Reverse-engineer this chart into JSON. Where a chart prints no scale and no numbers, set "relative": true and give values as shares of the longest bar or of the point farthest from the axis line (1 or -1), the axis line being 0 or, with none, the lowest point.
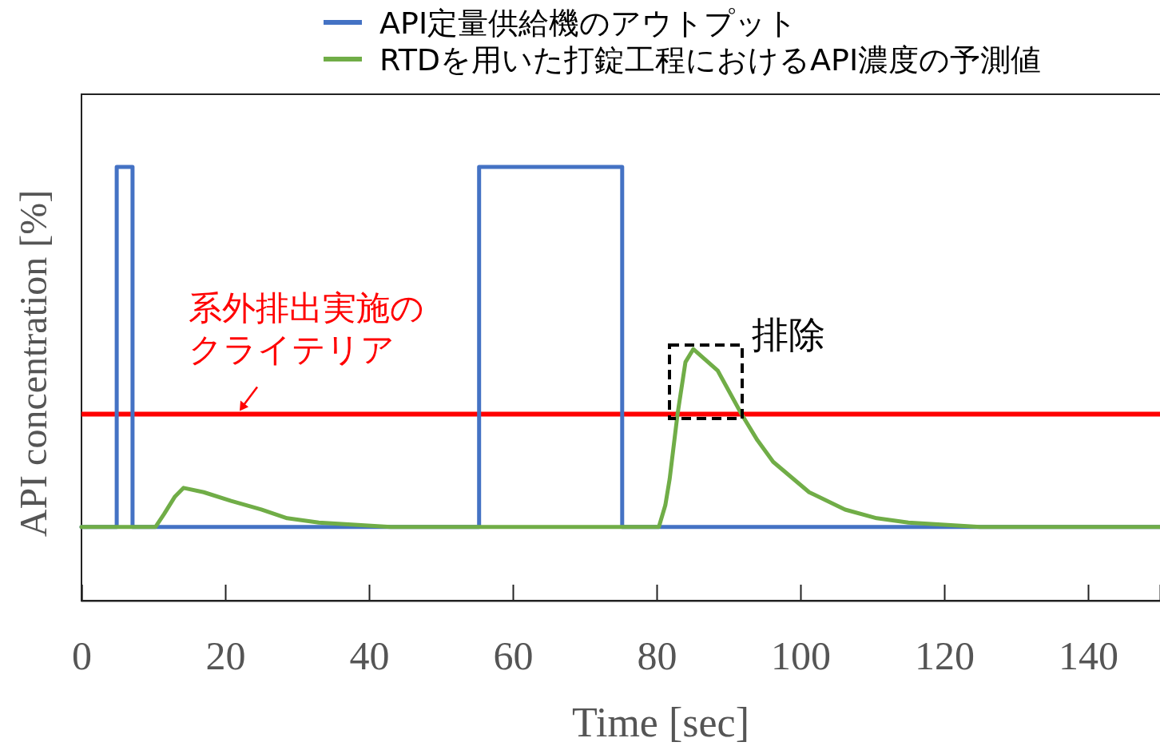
{
  "chart_data": {
    "type": "line",
    "relative": true,
    "xlabel": "Time [sec]",
    "ylabel": "API concentration [%]",
    "xlim": [
      0,
      150
    ],
    "xticks": [
      0,
      20,
      40,
      60,
      80,
      100,
      120,
      140
    ],
    "legend": "top",
    "series": [
      {
        "name": "API定量供給機のアウトプット",
        "color": "#4472c4",
        "x": [
          0,
          4.9,
          4.9,
          7.1,
          7.1,
          55.3,
          55.3,
          75.2,
          75.2,
          150
        ],
        "values": [
          0.17,
          0.17,
          1,
          1,
          0.17,
          0.17,
          1,
          1,
          0.17,
          0.17
        ]
      },
      {
        "name": "RTDを用いた打錠工程におけるAPI濃度の予測値",
        "color": "#70ad47",
        "x": [
          0,
          10.3,
          11.5,
          13,
          14.2,
          17,
          20.8,
          25,
          28.6,
          33,
          38,
          43,
          80.3,
          81.2,
          81.8,
          82.9,
          84,
          85.1,
          88.5,
          91.8,
          94,
          96.2,
          101.2,
          106.2,
          110.6,
          115,
          125,
          150
        ],
        "values": [
          0.17,
          0.17,
          0.2,
          0.24,
          0.26,
          0.25,
          0.23,
          0.21,
          0.19,
          0.18,
          0.175,
          0.17,
          0.17,
          0.22,
          0.28,
          0.43,
          0.55,
          0.58,
          0.53,
          0.43,
          0.37,
          0.32,
          0.25,
          0.21,
          0.19,
          0.18,
          0.17,
          0.17
        ]
      }
    ],
    "ref_lines": [
      {
        "axis": "y",
        "value": 0.43,
        "color": "#ff0000"
      }
    ],
    "annotations": [
      "系外排出実施の",
      {
        "text": "クライテリア",
        "x": 22,
        "y": 0.43
      },
      {
        "text": "排除",
        "x": 85,
        "y": 0.58
      }
    ]
  }
}
